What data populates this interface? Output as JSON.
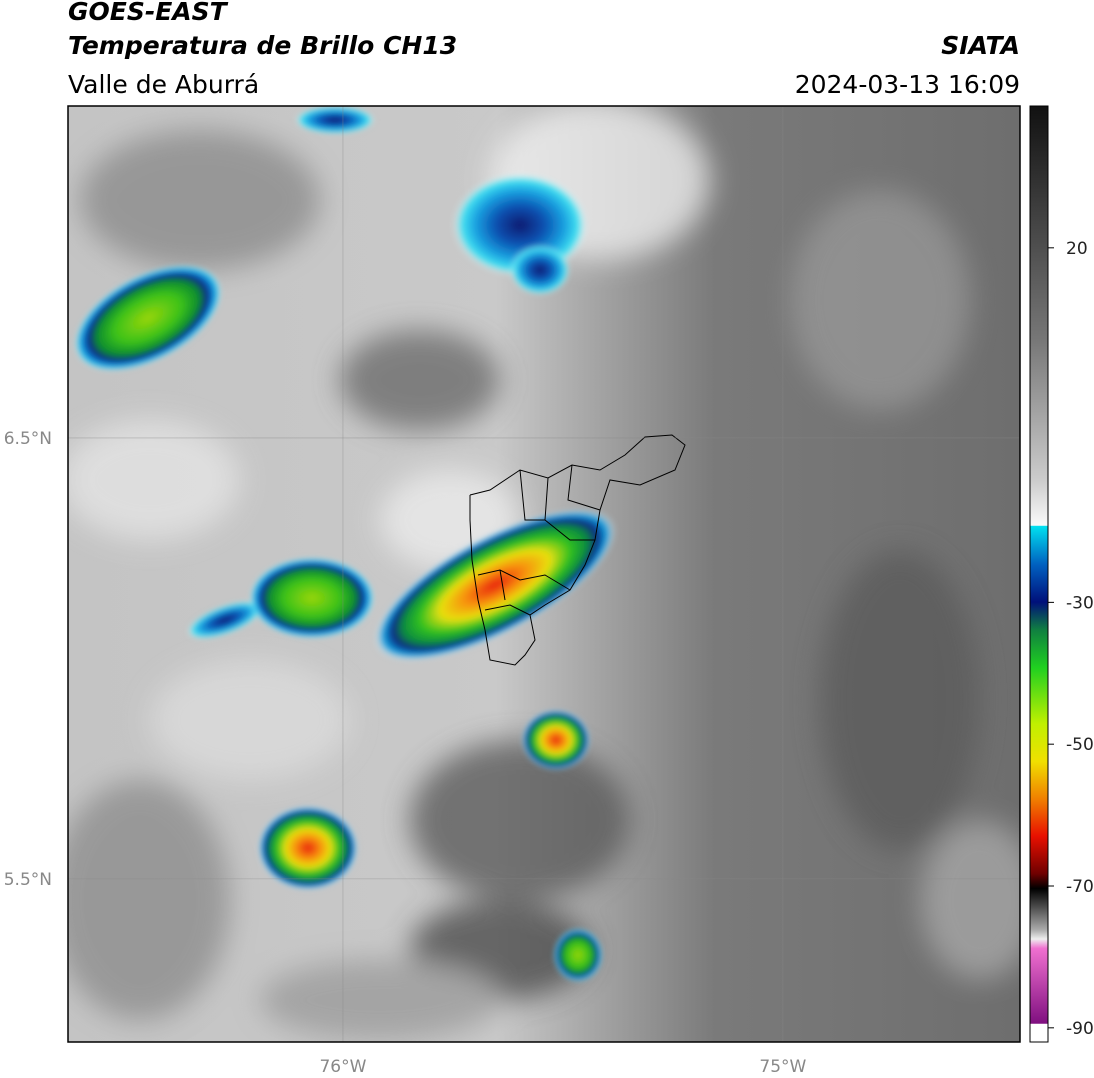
{
  "header": {
    "title": "GOES-EAST",
    "subtitle": "Temperatura de Brillo CH13",
    "region": "Valle de Aburrá",
    "source": "SIATA",
    "timestamp": "2024-03-13 16:09"
  },
  "map": {
    "xlim": [
      -76.625,
      -74.461
    ],
    "ylim": [
      5.13,
      7.253
    ],
    "xticks": [
      {
        "value": -76,
        "label": "76°W"
      },
      {
        "value": -75,
        "label": "75°W"
      }
    ],
    "yticks": [
      {
        "value": 6.5,
        "label": "6.5°N"
      },
      {
        "value": 5.5,
        "label": "5.5°N"
      }
    ],
    "grid": true
  },
  "colorbar": {
    "lim": [
      -92,
      40
    ],
    "ticks": [
      20,
      -30,
      -50,
      -70,
      -90
    ]
  }
}
